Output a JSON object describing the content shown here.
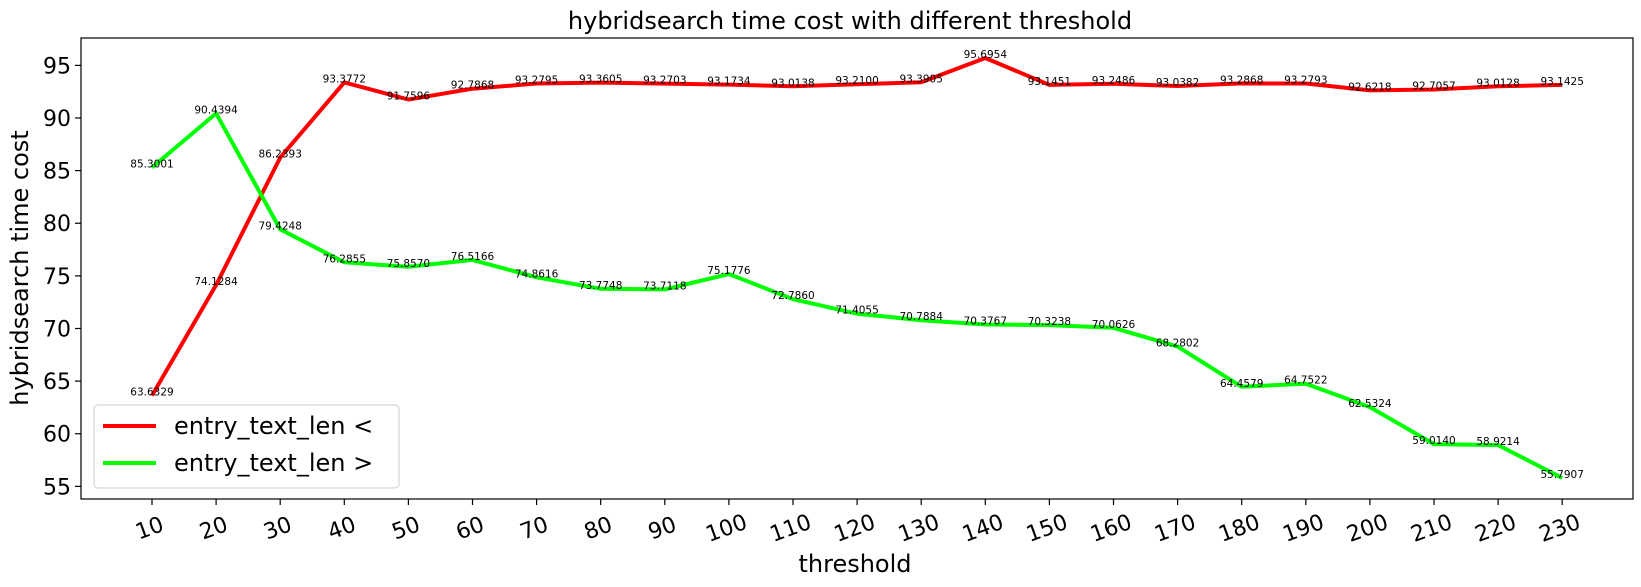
{
  "chart_data": {
    "type": "line",
    "title": "hybridsearch time cost with different threshold",
    "xlabel": "threshold",
    "ylabel": "hybridsearch time cost",
    "categories": [
      "10",
      "20",
      "30",
      "40",
      "50",
      "60",
      "70",
      "80",
      "90",
      "100",
      "110",
      "120",
      "130",
      "140",
      "150",
      "160",
      "170",
      "180",
      "190",
      "200",
      "210",
      "220",
      "230"
    ],
    "ylim": [
      53.8,
      97.6
    ],
    "yticks": [
      "55",
      "60",
      "65",
      "70",
      "75",
      "80",
      "85",
      "90",
      "95"
    ],
    "x_tick_rotation_deg": 20,
    "grid": false,
    "legend_position": "lower-left",
    "series": [
      {
        "name": "entry_text_len <",
        "color": "#ff0000",
        "values": [
          63.6329,
          74.1284,
          86.2393,
          93.3772,
          91.7596,
          92.7868,
          93.2795,
          93.3605,
          93.2703,
          93.1734,
          93.0138,
          93.21,
          93.3905,
          95.6954,
          93.1451,
          93.2486,
          93.0382,
          93.2868,
          93.2793,
          92.6218,
          92.7057,
          93.0128,
          93.1425
        ],
        "labels": [
          "63.6329",
          "74.1284",
          "86.2393",
          "93.3772",
          "91.7596",
          "92.7868",
          "93.2795",
          "93.3605",
          "93.2703",
          "93.1734",
          "93.0138",
          "93.2100",
          "93.3905",
          "95.6954",
          "93.1451",
          "93.2486",
          "93.0382",
          "93.2868",
          "93.2793",
          "92.6218",
          "92.7057",
          "93.0128",
          "93.1425"
        ]
      },
      {
        "name": "entry_text_len >",
        "color": "#00ff00",
        "values": [
          85.3001,
          90.4394,
          79.4248,
          76.2855,
          75.857,
          76.5166,
          74.8616,
          73.7748,
          73.7118,
          75.1776,
          72.786,
          71.4055,
          70.7884,
          70.3767,
          70.3238,
          70.0626,
          68.2802,
          64.4579,
          64.7522,
          62.5324,
          59.014,
          58.9214,
          55.7907
        ],
        "labels": [
          "85.3001",
          "90.4394",
          "79.4248",
          "76.2855",
          "75.8570",
          "76.5166",
          "74.8616",
          "73.7748",
          "73.7118",
          "75.1776",
          "72.7860",
          "71.4055",
          "70.7884",
          "70.3767",
          "70.3238",
          "70.0626",
          "68.2802",
          "64.4579",
          "64.7522",
          "62.5324",
          "59.0140",
          "58.9214",
          "55.7907"
        ]
      }
    ]
  }
}
